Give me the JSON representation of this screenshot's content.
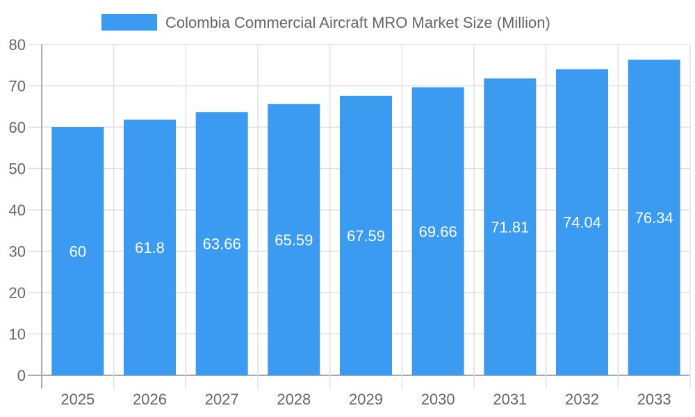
{
  "chart_data": {
    "type": "bar",
    "title": "",
    "legend": {
      "entries": [
        "Colombia Commercial Aircraft MRO Market Size (Million)"
      ],
      "placement": "top"
    },
    "categories": [
      "2025",
      "2026",
      "2027",
      "2028",
      "2029",
      "2030",
      "2031",
      "2032",
      "2033"
    ],
    "series": [
      {
        "name": "Colombia Commercial Aircraft MRO Market Size (Million)",
        "values": [
          60,
          61.8,
          63.66,
          65.59,
          67.59,
          69.66,
          71.81,
          74.04,
          76.34
        ]
      }
    ],
    "data_labels": [
      "60",
      "61.8",
      "63.66",
      "65.59",
      "67.59",
      "69.66",
      "71.81",
      "74.04",
      "76.34"
    ],
    "ylim": [
      0,
      80
    ],
    "yticks": [
      "0",
      "10",
      "20",
      "30",
      "40",
      "50",
      "60",
      "70",
      "80"
    ],
    "grid": true,
    "colors": {
      "bar": "#3a9bf0",
      "grid": "#e0e0e0",
      "axis": "#aaaaaa",
      "text": "#666666"
    }
  }
}
